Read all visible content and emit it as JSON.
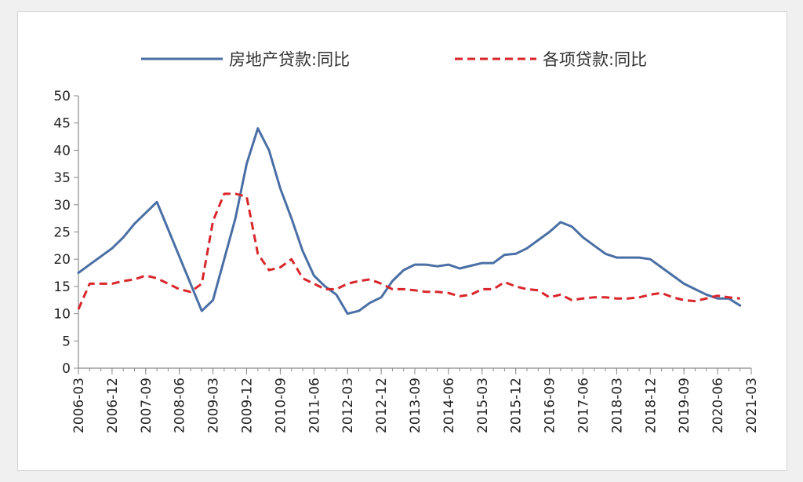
{
  "chart_data": {
    "type": "line",
    "title": "",
    "xlabel": "",
    "ylabel": "",
    "ylim": [
      0,
      50
    ],
    "yticks": [
      0,
      5,
      10,
      15,
      20,
      25,
      30,
      35,
      40,
      45,
      50
    ],
    "xtick_labels": [
      "2006-03",
      "2006-12",
      "2007-09",
      "2008-06",
      "2009-03",
      "2009-12",
      "2010-09",
      "2011-06",
      "2012-03",
      "2012-12",
      "2013-09",
      "2014-06",
      "2015-03",
      "2015-12",
      "2016-09",
      "2017-06",
      "2018-03",
      "2018-12",
      "2019-09",
      "2020-06",
      "2021-03"
    ],
    "x": [
      "2006-03",
      "2006-06",
      "2006-09",
      "2006-12",
      "2007-03",
      "2007-06",
      "2007-09",
      "2007-12",
      "2008-03",
      "2008-06",
      "2008-09",
      "2008-12",
      "2009-03",
      "2009-06",
      "2009-09",
      "2009-12",
      "2010-03",
      "2010-06",
      "2010-09",
      "2010-12",
      "2011-03",
      "2011-06",
      "2011-09",
      "2011-12",
      "2012-03",
      "2012-06",
      "2012-09",
      "2012-12",
      "2013-03",
      "2013-06",
      "2013-09",
      "2013-12",
      "2014-03",
      "2014-06",
      "2014-09",
      "2014-12",
      "2015-03",
      "2015-06",
      "2015-09",
      "2015-12",
      "2016-03",
      "2016-06",
      "2016-09",
      "2016-12",
      "2017-03",
      "2017-06",
      "2017-09",
      "2017-12",
      "2018-03",
      "2018-06",
      "2018-09",
      "2018-12",
      "2019-03",
      "2019-06",
      "2019-09",
      "2019-12",
      "2020-03",
      "2020-06",
      "2020-09",
      "2020-12"
    ],
    "legend_position": "top",
    "grid": false,
    "series": [
      {
        "name": "房地产贷款:同比",
        "color": "#4a6fa5",
        "style": "solid",
        "values": [
          17.5,
          19.0,
          20.5,
          22.0,
          24.0,
          26.5,
          28.5,
          30.5,
          25.5,
          20.5,
          15.5,
          10.5,
          12.5,
          20.0,
          27.5,
          37.5,
          44.0,
          40.0,
          33.0,
          27.5,
          21.5,
          17.0,
          15.0,
          13.5,
          10.0,
          10.5,
          12.0,
          13.0,
          16.0,
          18.0,
          19.0,
          19.0,
          18.7,
          19.0,
          18.3,
          18.8,
          19.3,
          19.3,
          20.8,
          21.0,
          22.0,
          23.5,
          25.0,
          26.8,
          26.0,
          24.0,
          22.5,
          21.0,
          20.3,
          20.3,
          20.3,
          20.0,
          18.5,
          17.0,
          15.5,
          14.5,
          13.5,
          12.8,
          12.8,
          11.5
        ]
      },
      {
        "name": "各项贷款:同比",
        "color": "#d9262b",
        "style": "dashed",
        "values": [
          10.8,
          15.5,
          15.5,
          15.5,
          16.0,
          16.3,
          17.0,
          16.5,
          15.5,
          14.5,
          14.0,
          15.5,
          27.0,
          32.0,
          32.0,
          31.5,
          21.0,
          18.0,
          18.5,
          20.0,
          16.5,
          15.5,
          14.5,
          14.5,
          15.5,
          16.0,
          16.3,
          15.5,
          14.5,
          14.5,
          14.3,
          14.0,
          14.0,
          13.8,
          13.2,
          13.5,
          14.5,
          14.5,
          15.8,
          15.0,
          14.5,
          14.3,
          13.0,
          13.5,
          12.5,
          12.8,
          13.0,
          13.0,
          12.8,
          12.8,
          13.0,
          13.5,
          13.8,
          13.0,
          12.5,
          12.3,
          12.8,
          13.3,
          13.0,
          12.8
        ]
      }
    ]
  }
}
